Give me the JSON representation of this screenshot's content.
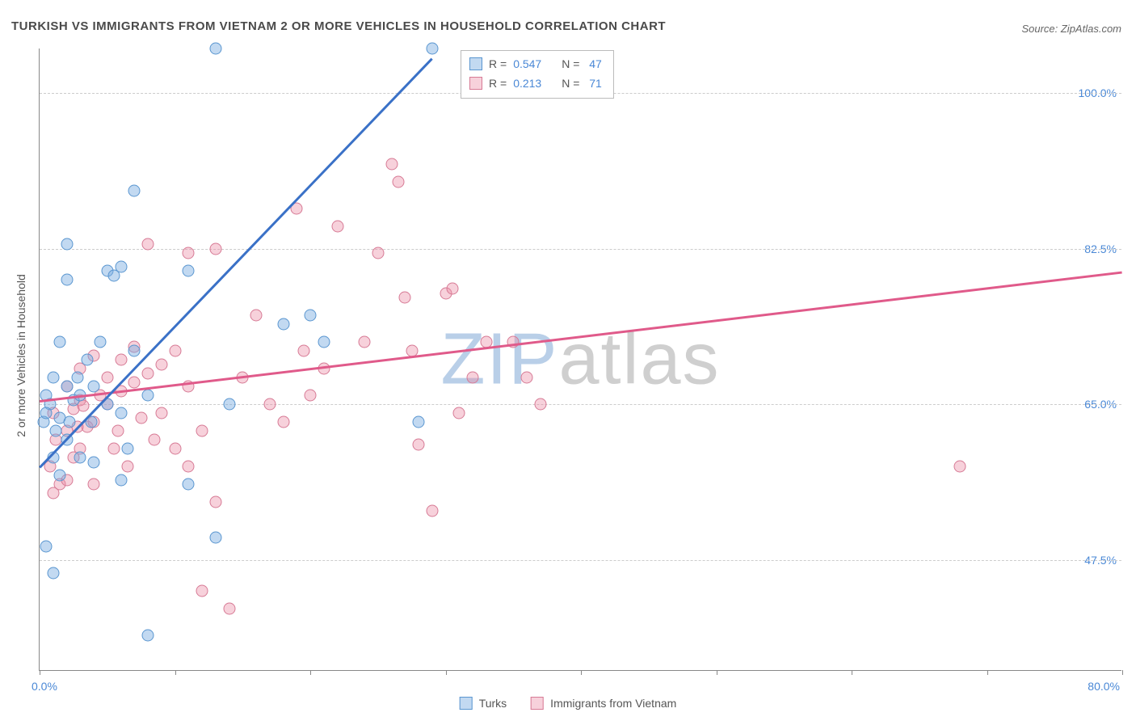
{
  "title": "TURKISH VS IMMIGRANTS FROM VIETNAM 2 OR MORE VEHICLES IN HOUSEHOLD CORRELATION CHART",
  "source": "Source: ZipAtlas.com",
  "y_axis_label": "2 or more Vehicles in Household",
  "watermark": {
    "text_zip": "ZIP",
    "text_atlas": "atlas",
    "color_zip": "#b9cfe8",
    "color_atlas": "#cfcfcf"
  },
  "plot": {
    "type": "scatter",
    "background_color": "#ffffff",
    "grid_color": "#cccccc",
    "axis_color": "#888888",
    "x_range": [
      0,
      80
    ],
    "y_range": [
      35,
      105
    ],
    "y_ticks": [
      {
        "value": 47.5,
        "label": "47.5%"
      },
      {
        "value": 65.0,
        "label": "65.0%"
      },
      {
        "value": 82.5,
        "label": "82.5%"
      },
      {
        "value": 100.0,
        "label": "100.0%"
      }
    ],
    "x_ticks": [
      {
        "value": 0,
        "label": "0.0%"
      },
      {
        "value": 10,
        "label": ""
      },
      {
        "value": 20,
        "label": ""
      },
      {
        "value": 30,
        "label": ""
      },
      {
        "value": 40,
        "label": ""
      },
      {
        "value": 50,
        "label": ""
      },
      {
        "value": 60,
        "label": ""
      },
      {
        "value": 70,
        "label": ""
      },
      {
        "value": 80,
        "label": "80.0%"
      }
    ],
    "series": [
      {
        "name": "Turks",
        "color_fill": "rgba(120,170,225,0.45)",
        "color_stroke": "#5a96d0",
        "R": "0.547",
        "N": "47",
        "trend": {
          "x1": 0,
          "y1": 58,
          "x2": 29,
          "y2": 104,
          "color": "#3a71c7"
        },
        "points": [
          [
            0.5,
            49
          ],
          [
            1,
            46
          ],
          [
            1.5,
            57
          ],
          [
            1,
            59
          ],
          [
            1.2,
            62
          ],
          [
            0.3,
            63
          ],
          [
            1.5,
            63.5
          ],
          [
            2,
            61
          ],
          [
            2.2,
            63
          ],
          [
            0.8,
            65
          ],
          [
            0.5,
            66
          ],
          [
            2.5,
            65.5
          ],
          [
            2,
            67
          ],
          [
            3,
            66
          ],
          [
            1,
            68
          ],
          [
            3.5,
            70
          ],
          [
            4,
            67
          ],
          [
            1.5,
            72
          ],
          [
            2,
            79
          ],
          [
            5,
            80
          ],
          [
            6,
            80.5
          ],
          [
            4.5,
            72
          ],
          [
            5,
            65
          ],
          [
            6,
            64
          ],
          [
            4,
            58.5
          ],
          [
            6,
            56.5
          ],
          [
            11,
            56
          ],
          [
            13,
            50
          ],
          [
            8,
            39
          ],
          [
            11,
            80
          ],
          [
            14,
            65
          ],
          [
            7,
            89
          ],
          [
            2,
            83
          ],
          [
            18,
            74
          ],
          [
            20,
            75
          ],
          [
            21,
            72
          ],
          [
            13,
            105
          ],
          [
            29,
            105
          ],
          [
            28,
            63
          ],
          [
            6.5,
            60
          ],
          [
            3,
            59
          ],
          [
            7,
            71
          ],
          [
            8,
            66
          ],
          [
            3.8,
            63
          ],
          [
            0.5,
            64
          ],
          [
            2.8,
            68
          ],
          [
            5.5,
            79.5
          ]
        ]
      },
      {
        "name": "Immigrants from Vietnam",
        "color_fill": "rgba(235,140,165,0.40)",
        "color_stroke": "#d77a95",
        "R": "0.213",
        "N": "71",
        "trend": {
          "x1": 0,
          "y1": 65.5,
          "x2": 80,
          "y2": 80,
          "color": "#e05a8a"
        },
        "points": [
          [
            1,
            55
          ],
          [
            1.5,
            56
          ],
          [
            2,
            56.5
          ],
          [
            0.8,
            58
          ],
          [
            2.5,
            59
          ],
          [
            3,
            60
          ],
          [
            1.2,
            61
          ],
          [
            2,
            62
          ],
          [
            3.5,
            62.5
          ],
          [
            4,
            63
          ],
          [
            1,
            64
          ],
          [
            2.5,
            64.5
          ],
          [
            5,
            65
          ],
          [
            3,
            65.5
          ],
          [
            4.5,
            66
          ],
          [
            6,
            66.5
          ],
          [
            2,
            67
          ],
          [
            7,
            67.5
          ],
          [
            5,
            68
          ],
          [
            8,
            68.5
          ],
          [
            3,
            69
          ],
          [
            9,
            69.5
          ],
          [
            6,
            70
          ],
          [
            4,
            70.5
          ],
          [
            10,
            71
          ],
          [
            7,
            71.5
          ],
          [
            11,
            67
          ],
          [
            12,
            62
          ],
          [
            13,
            54
          ],
          [
            12,
            44
          ],
          [
            14,
            42
          ],
          [
            11,
            82
          ],
          [
            13,
            82.5
          ],
          [
            15,
            68
          ],
          [
            16,
            75
          ],
          [
            17,
            65
          ],
          [
            18,
            63
          ],
          [
            19,
            87
          ],
          [
            19.5,
            71
          ],
          [
            20,
            66
          ],
          [
            21,
            69
          ],
          [
            22,
            85
          ],
          [
            24,
            72
          ],
          [
            25,
            82
          ],
          [
            26,
            92
          ],
          [
            26.5,
            90
          ],
          [
            27,
            77
          ],
          [
            27.5,
            71
          ],
          [
            28,
            60.5
          ],
          [
            29,
            53
          ],
          [
            30,
            77.5
          ],
          [
            30.5,
            78
          ],
          [
            31,
            64
          ],
          [
            32,
            68
          ],
          [
            33,
            72
          ],
          [
            35,
            72
          ],
          [
            36,
            68
          ],
          [
            37,
            65
          ],
          [
            68,
            58
          ],
          [
            8,
            83
          ],
          [
            5.5,
            60
          ],
          [
            6.5,
            58
          ],
          [
            9,
            64
          ],
          [
            10,
            60
          ],
          [
            11,
            58
          ],
          [
            4,
            56
          ],
          [
            2.8,
            62.5
          ],
          [
            3.2,
            64.8
          ],
          [
            5.8,
            62
          ],
          [
            7.5,
            63.5
          ],
          [
            8.5,
            61
          ]
        ]
      }
    ]
  },
  "legend_top": {
    "R_label": "R =",
    "N_label": "N ="
  },
  "legend_bottom": {
    "series1": "Turks",
    "series2": "Immigrants from Vietnam"
  }
}
